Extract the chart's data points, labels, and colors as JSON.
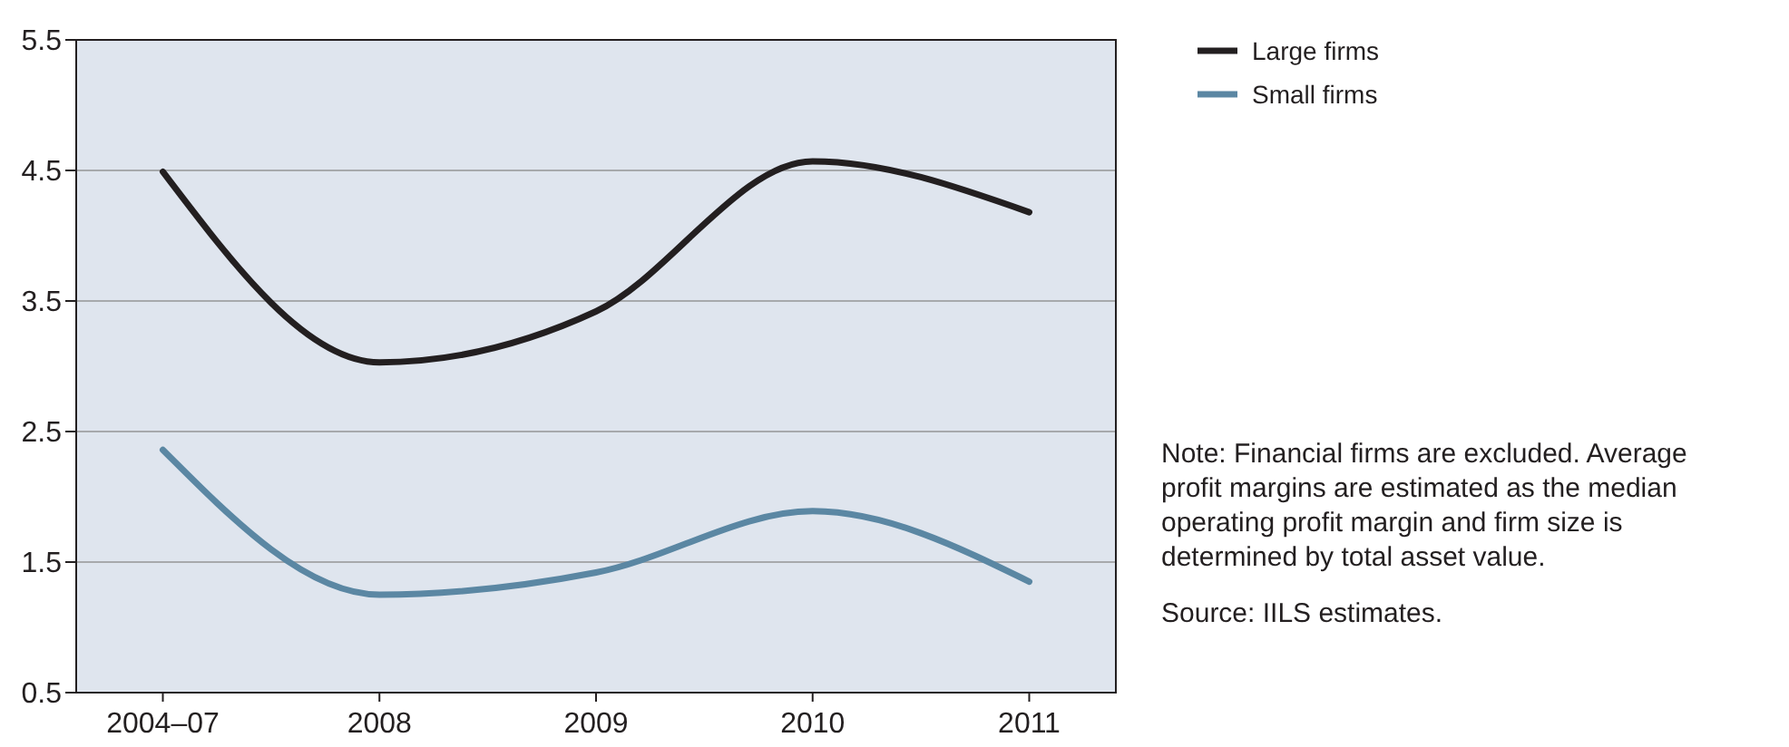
{
  "chart_data": {
    "type": "line",
    "categories": [
      "2004–07",
      "2008",
      "2009",
      "2010",
      "2011"
    ],
    "series": [
      {
        "name": "Large firms",
        "color": "#231f20",
        "values": [
          4.49,
          3.03,
          3.42,
          4.57,
          4.18
        ]
      },
      {
        "name": "Small firms",
        "color": "#5b87a3",
        "values": [
          2.36,
          1.25,
          1.42,
          1.89,
          1.35
        ]
      }
    ],
    "ylim": [
      0.5,
      5.5
    ],
    "yticks": [
      0.5,
      1.5,
      2.5,
      3.5,
      4.5,
      5.5
    ],
    "grid": "y",
    "legend": "top right",
    "marker": "none",
    "line_style": "solid",
    "annotations": [
      "Note: Financial firms are excluded. Average profit margins are estimated as the median operating profit margin and firm size is determined by total asset value.",
      "Source: IILS estimates."
    ]
  }
}
